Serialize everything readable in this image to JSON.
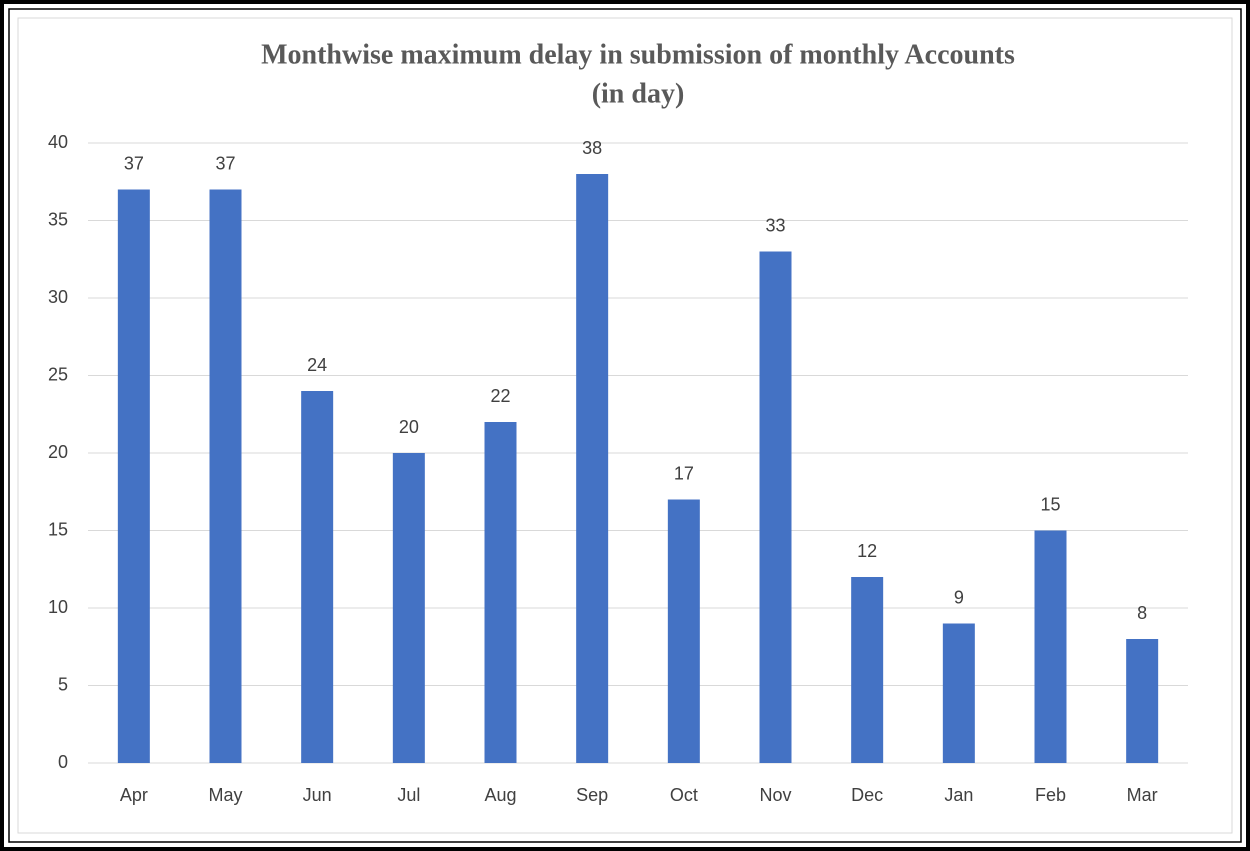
{
  "chart_data": {
    "type": "bar",
    "title": [
      "Monthwise maximum delay in submission of monthly Accounts",
      "(in day)"
    ],
    "categories": [
      "Apr",
      "May",
      "Jun",
      "Jul",
      "Aug",
      "Sep",
      "Oct",
      "Nov",
      "Dec",
      "Jan",
      "Feb",
      "Mar"
    ],
    "values": [
      37,
      37,
      24,
      20,
      22,
      38,
      17,
      33,
      12,
      9,
      15,
      8
    ],
    "color": "#4472c4",
    "ylim": [
      0,
      40
    ],
    "yticks": [
      0,
      5,
      10,
      15,
      20,
      25,
      30,
      35,
      40
    ],
    "grid": true
  }
}
